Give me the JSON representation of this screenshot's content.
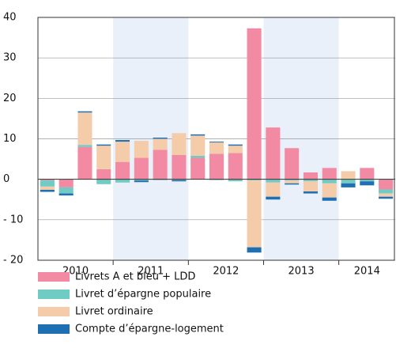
{
  "chart_data": {
    "type": "stacked-bar",
    "year_labels": [
      "2010",
      "2011",
      "2012",
      "2013",
      "2014"
    ],
    "series": [
      {
        "name": "Livrets A et bleu + LDD",
        "color": "#f38aa3",
        "values": [
          -0.3,
          -2,
          8,
          2.5,
          4.3,
          5.3,
          7.3,
          6,
          5.3,
          6.3,
          6.5,
          37.3,
          12.8,
          7.7,
          1.7,
          2.8,
          0,
          2.8,
          -2.5
        ]
      },
      {
        "name": "Livret d’épargne populaire",
        "color": "#6fcbc4",
        "values": [
          -1.5,
          -1.5,
          0.5,
          -1.2,
          -0.8,
          -0.3,
          -0.2,
          -0.2,
          0.5,
          -0.2,
          -0.5,
          -0.3,
          -0.8,
          -0.3,
          -0.5,
          -1,
          -1,
          -0.5,
          -1
        ]
      },
      {
        "name": "Livret ordinaire",
        "color": "#f5ccaa",
        "values": [
          -0.8,
          0,
          8,
          5.8,
          5,
          4.2,
          2.7,
          5.4,
          5,
          2.8,
          1.8,
          -16.5,
          -3.5,
          -0.7,
          -2.5,
          -3.5,
          2,
          0,
          -0.8
        ]
      },
      {
        "name": "Compte d’épargne-logement",
        "color": "#1f6fb2",
        "values": [
          -0.5,
          -0.5,
          0.3,
          0.3,
          0.4,
          -0.4,
          0.3,
          -0.3,
          0.3,
          0.2,
          0.3,
          -1.3,
          -0.7,
          -0.3,
          -0.5,
          -0.8,
          -1,
          -1,
          -0.5
        ]
      }
    ],
    "ylim": [
      -20,
      40
    ],
    "yticks": [
      {
        "value": -20,
        "label": "- 20"
      },
      {
        "value": -10,
        "label": "- 10"
      },
      0,
      10,
      20,
      30,
      40
    ],
    "grid": true,
    "shade_alternate_years": true
  }
}
